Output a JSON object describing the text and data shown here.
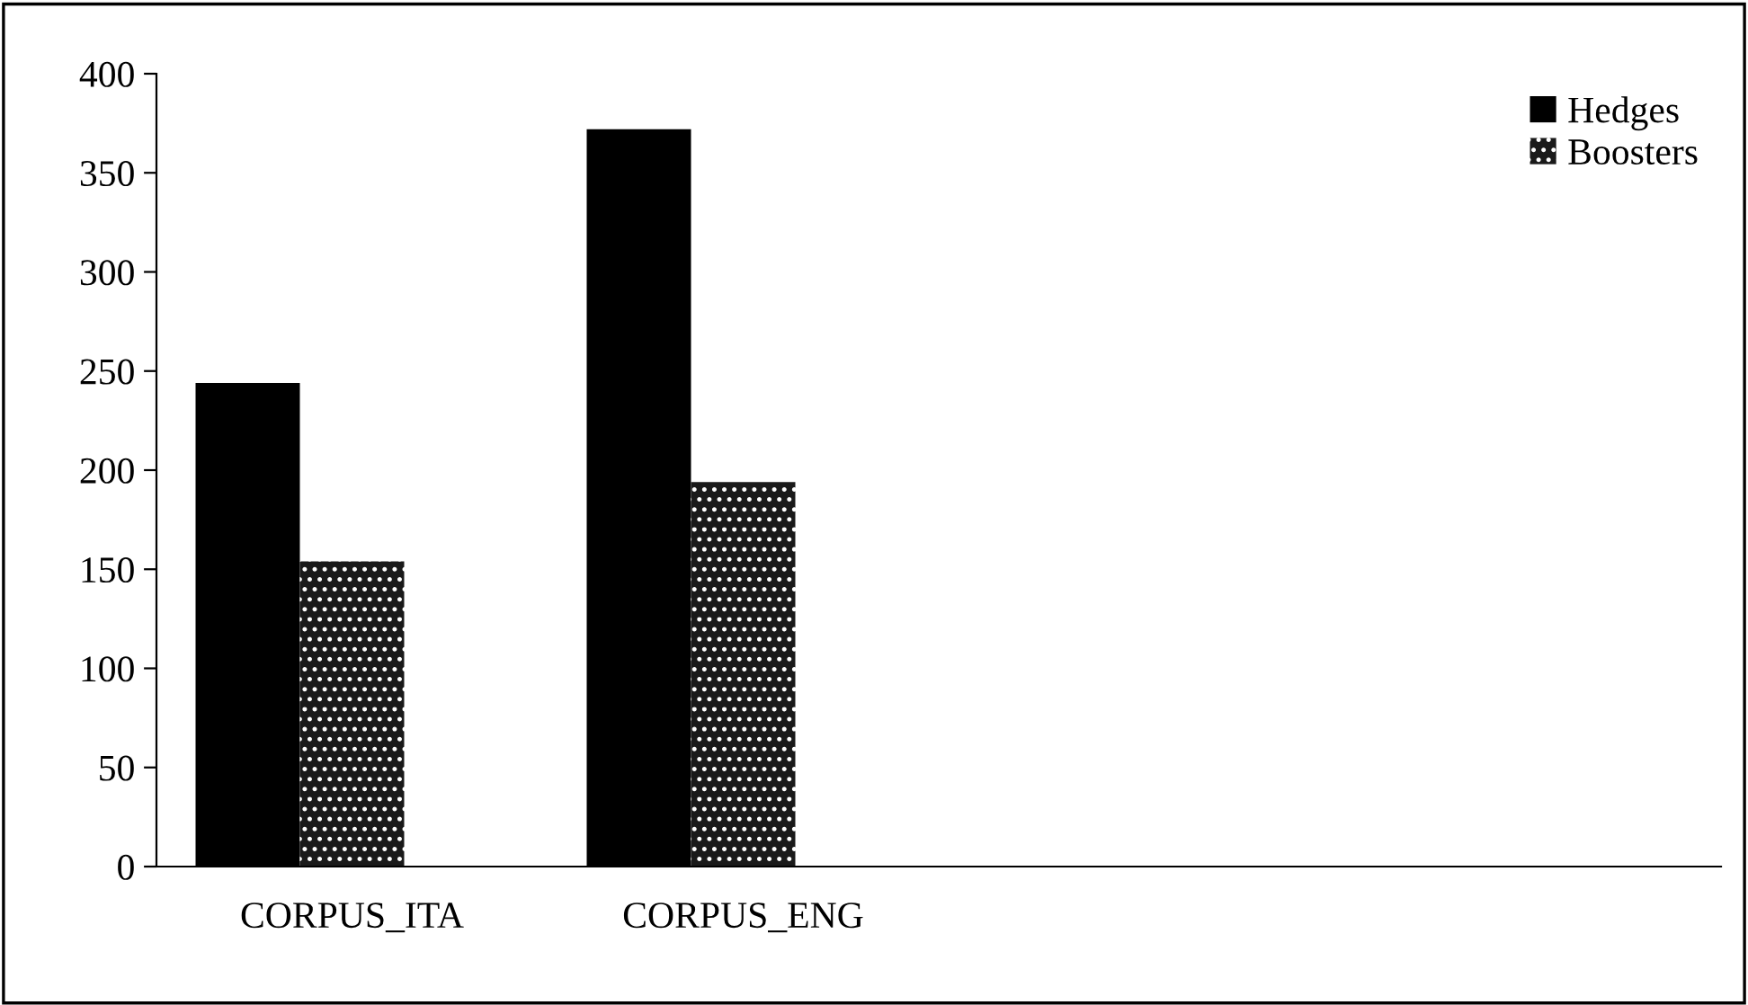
{
  "chart_data": {
    "type": "bar",
    "categories": [
      "CORPUS_ITA",
      "CORPUS_ENG",
      null,
      null
    ],
    "series": [
      {
        "name": "Hedges",
        "color": "#000000",
        "values": [
          244,
          372,
          null,
          null
        ]
      },
      {
        "name": "Boosters",
        "color": "#1a1a1a",
        "values": [
          154,
          194,
          null,
          null
        ]
      }
    ],
    "ylim": [
      0,
      400
    ],
    "yticks": [
      0,
      50,
      100,
      150,
      200,
      250,
      300,
      350,
      400
    ],
    "grid": false,
    "legend": "top right"
  }
}
